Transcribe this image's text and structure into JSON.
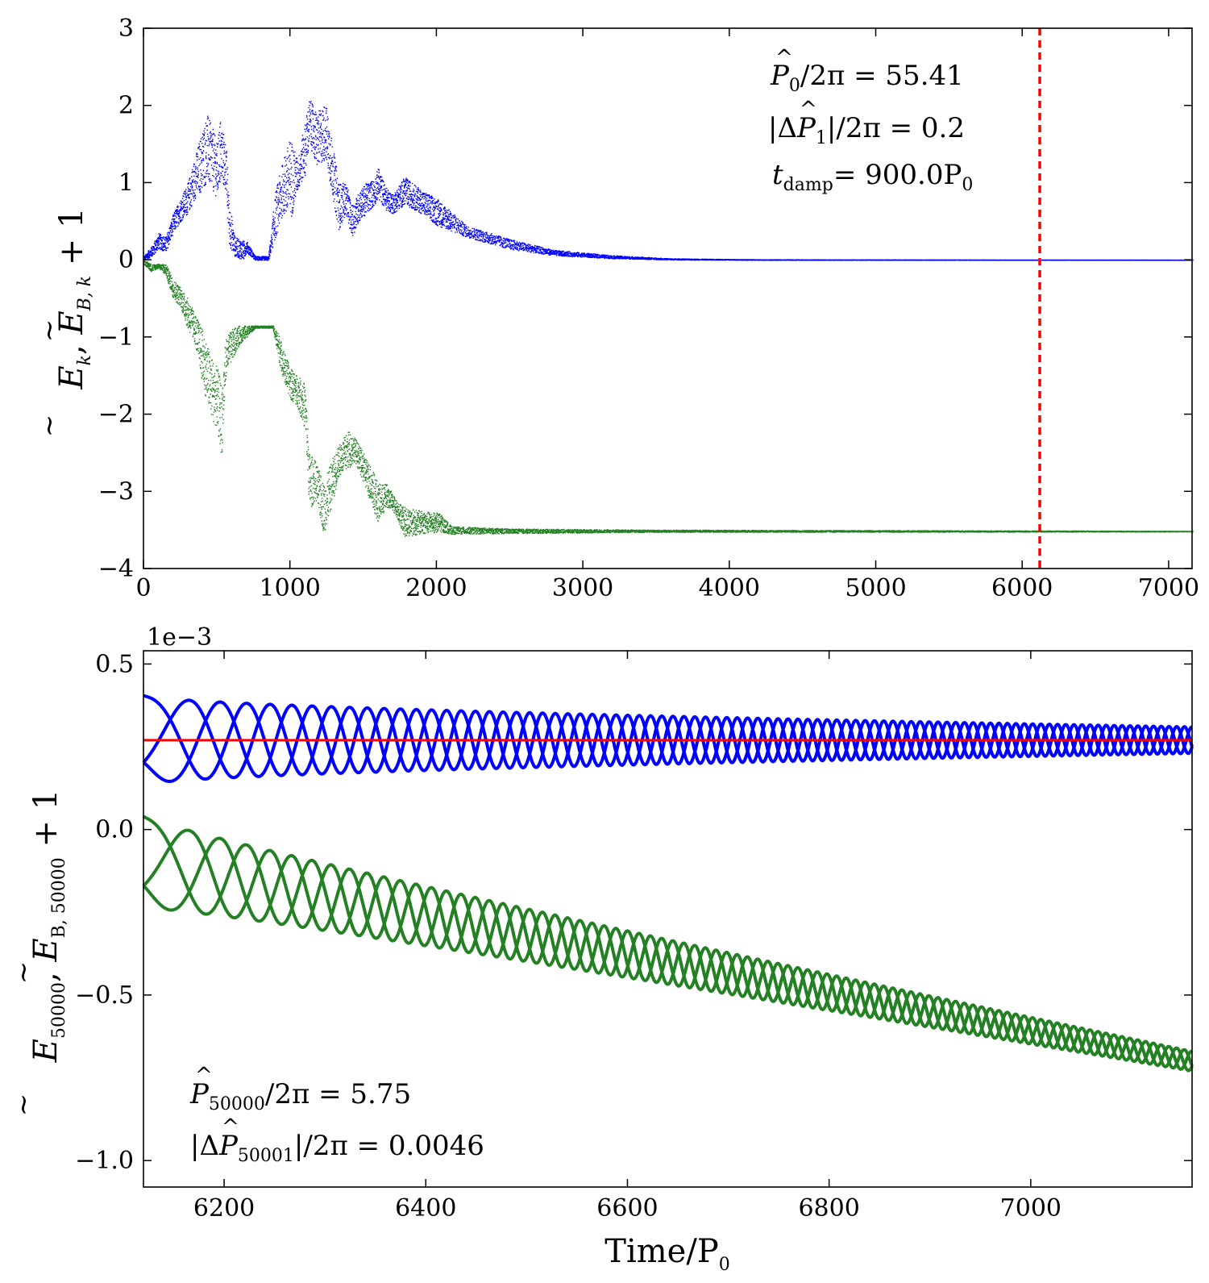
{
  "chart_data": [
    {
      "id": "top",
      "type": "scatter",
      "title": "",
      "xlabel": "",
      "ylabel": {
        "base1": "E",
        "sub1": "k",
        "base2": "E",
        "sub2": "B, k",
        "suffix": "+ 1"
      },
      "xlim": [
        0,
        7160
      ],
      "ylim": [
        -4,
        3
      ],
      "xticks": [
        0,
        1000,
        2000,
        3000,
        4000,
        5000,
        6000,
        7000
      ],
      "yticks": [
        3,
        2,
        1,
        0,
        -1,
        -2,
        -3,
        -4
      ],
      "ytick_labels": [
        "3",
        "2",
        "1",
        "0",
        "−1",
        "−2",
        "−3",
        "−4"
      ],
      "vline": {
        "x": 6120,
        "color": "#ff0000",
        "style": "dashed"
      },
      "series": [
        {
          "name": "E_k",
          "color": "#0000ff",
          "envelope": [
            [
              0,
              0,
              0.05
            ],
            [
              60,
              0.05,
              0.2
            ],
            [
              100,
              0.15,
              0.35
            ],
            [
              150,
              0.1,
              0.3
            ],
            [
              200,
              0.35,
              0.6
            ],
            [
              250,
              0.5,
              0.8
            ],
            [
              300,
              0.6,
              1.0
            ],
            [
              350,
              0.8,
              1.35
            ],
            [
              400,
              0.9,
              1.7
            ],
            [
              430,
              1.0,
              1.9
            ],
            [
              470,
              0.9,
              1.7
            ],
            [
              500,
              0.8,
              1.5
            ],
            [
              520,
              1.0,
              1.85
            ],
            [
              560,
              0.9,
              1.5
            ],
            [
              580,
              0.2,
              0.8
            ],
            [
              620,
              0.05,
              0.3
            ],
            [
              680,
              0.0,
              0.25
            ],
            [
              700,
              0.1,
              0.25
            ],
            [
              760,
              0.0,
              0.05
            ],
            [
              850,
              0.0,
              0.05
            ],
            [
              900,
              0.3,
              0.9
            ],
            [
              950,
              0.6,
              1.3
            ],
            [
              1000,
              0.5,
              1.6
            ],
            [
              1050,
              0.9,
              1.3
            ],
            [
              1100,
              1.1,
              1.8
            ],
            [
              1130,
              1.5,
              2.1
            ],
            [
              1180,
              1.2,
              1.9
            ],
            [
              1240,
              1.3,
              2.05
            ],
            [
              1280,
              0.9,
              1.6
            ],
            [
              1330,
              0.4,
              1.0
            ],
            [
              1380,
              0.6,
              1.0
            ],
            [
              1420,
              0.3,
              0.7
            ],
            [
              1470,
              0.5,
              0.9
            ],
            [
              1520,
              0.6,
              1.0
            ],
            [
              1570,
              0.7,
              1.05
            ],
            [
              1600,
              0.8,
              1.2
            ],
            [
              1650,
              0.65,
              0.95
            ],
            [
              1700,
              0.6,
              0.85
            ],
            [
              1780,
              0.72,
              1.08
            ],
            [
              1900,
              0.6,
              0.9
            ],
            [
              2000,
              0.45,
              0.8
            ],
            [
              2200,
              0.3,
              0.45
            ],
            [
              2500,
              0.14,
              0.27
            ],
            [
              2800,
              0.06,
              0.13
            ],
            [
              3200,
              0.02,
              0.06
            ],
            [
              3600,
              0.005,
              0.02
            ],
            [
              4200,
              0.0,
              0.008
            ],
            [
              7160,
              0.0,
              0.003
            ]
          ]
        },
        {
          "name": "E_B,k + 1",
          "color": "#238023",
          "envelope": [
            [
              0,
              -0.05,
              0.0
            ],
            [
              50,
              -0.15,
              -0.05
            ],
            [
              100,
              -0.1,
              -0.05
            ],
            [
              150,
              -0.2,
              -0.05
            ],
            [
              200,
              -0.5,
              -0.25
            ],
            [
              250,
              -0.6,
              -0.35
            ],
            [
              300,
              -0.9,
              -0.5
            ],
            [
              350,
              -1.1,
              -0.7
            ],
            [
              400,
              -1.6,
              -0.9
            ],
            [
              450,
              -2.0,
              -1.2
            ],
            [
              500,
              -2.2,
              -1.4
            ],
            [
              530,
              -2.55,
              -1.6
            ],
            [
              560,
              -1.5,
              -1.0
            ],
            [
              600,
              -1.3,
              -0.9
            ],
            [
              650,
              -1.1,
              -0.85
            ],
            [
              700,
              -1.0,
              -0.85
            ],
            [
              760,
              -0.88,
              -0.85
            ],
            [
              880,
              -0.88,
              -0.85
            ],
            [
              920,
              -1.3,
              -0.95
            ],
            [
              960,
              -1.6,
              -1.2
            ],
            [
              1000,
              -1.8,
              -1.4
            ],
            [
              1050,
              -1.9,
              -1.5
            ],
            [
              1100,
              -2.2,
              -1.6
            ],
            [
              1130,
              -3.25,
              -2.5
            ],
            [
              1170,
              -3.1,
              -2.6
            ],
            [
              1230,
              -3.55,
              -2.9
            ],
            [
              1280,
              -3.2,
              -2.6
            ],
            [
              1330,
              -2.8,
              -2.4
            ],
            [
              1400,
              -2.7,
              -2.2
            ],
            [
              1440,
              -2.6,
              -2.3
            ],
            [
              1500,
              -2.9,
              -2.5
            ],
            [
              1560,
              -3.2,
              -2.7
            ],
            [
              1600,
              -3.4,
              -2.9
            ],
            [
              1660,
              -3.2,
              -2.9
            ],
            [
              1720,
              -3.3,
              -3.1
            ],
            [
              1780,
              -3.58,
              -3.2
            ],
            [
              1900,
              -3.55,
              -3.25
            ],
            [
              2020,
              -3.52,
              -3.28
            ],
            [
              2100,
              -3.55,
              -3.45
            ],
            [
              2500,
              -3.54,
              -3.48
            ],
            [
              3500,
              -3.525,
              -3.495
            ],
            [
              7160,
              -3.52,
              -3.51
            ]
          ]
        }
      ],
      "annotations": [
        {
          "base": "P",
          "sub": "0",
          "rest": "/2π = 55.41"
        },
        {
          "prefix": "|Δ",
          "base": "P",
          "sub": "1",
          "rest": "|/2π = 0.2"
        },
        {
          "base": "t",
          "sub": "damp",
          "rest": "= 900.0P",
          "rest_sub": "0"
        }
      ]
    },
    {
      "id": "bottom",
      "type": "line",
      "title": "",
      "xlabel": {
        "base": "Time/P",
        "sub": "0"
      },
      "ylabel": {
        "base1": "E",
        "sub1": "50000",
        "base2": "E",
        "sub2": "B, 50000",
        "suffix": "+ 1"
      },
      "xlim": [
        6120,
        7160
      ],
      "ylim": [
        -1.08,
        0.54
      ],
      "offset_label": "1e−3",
      "xticks": [
        6200,
        6400,
        6600,
        6800,
        7000
      ],
      "yticks": [
        0.5,
        0.0,
        -0.5,
        -1.0
      ],
      "ytick_labels": [
        "0.5",
        "0.0",
        "−0.5",
        "−1.0"
      ],
      "hline": {
        "y": 0.27,
        "color": "#ff0000"
      },
      "series": [
        {
          "name": "E_50000",
          "color": "#0000ff",
          "center": 0.27,
          "amp_start": 0.135,
          "amp_end": 0.04,
          "phase_offsets": [
            0,
            2.094,
            4.189
          ]
        },
        {
          "name": "E_B,50000 + 1",
          "color": "#238023",
          "center_start": -0.1,
          "center_end": -0.7,
          "amp_start": 0.14,
          "amp_end": 0.03,
          "phase_offsets": [
            0,
            2.094,
            4.189
          ]
        }
      ],
      "annotations": [
        {
          "base": "P",
          "sub": "50000",
          "rest": "/2π = 5.75"
        },
        {
          "prefix": "|Δ",
          "base": "P",
          "sub": "50001",
          "rest": "|/2π = 0.0046"
        }
      ]
    }
  ]
}
